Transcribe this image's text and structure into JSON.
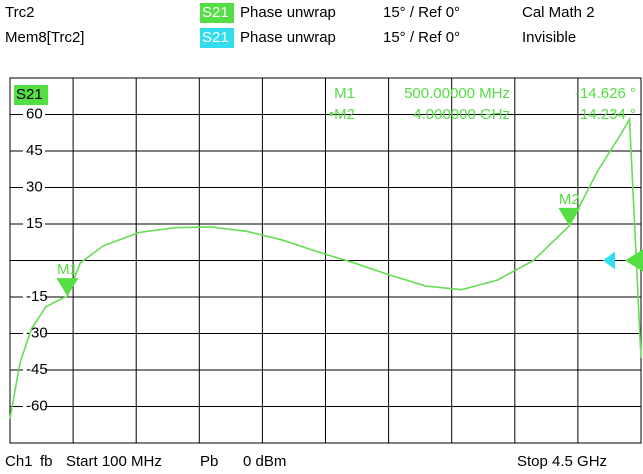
{
  "chart_data": {
    "type": "line",
    "header": [
      {
        "trace": "Trc2",
        "param": "S21",
        "format": "Phase unwrap",
        "scale": "15° / Ref 0°",
        "extra": "Cal Math  2"
      },
      {
        "trace": "Mem8[Trc2]",
        "param": "S21",
        "format": "Phase unwrap",
        "scale": "15° / Ref 0°",
        "extra": "Invisible"
      }
    ],
    "trace_label": "S21",
    "footer": [
      "Ch1",
      "fb",
      "Start 100 MHz",
      "Pb",
      "0 dBm",
      "Stop 4.5 GHz"
    ],
    "x": [
      0.1,
      0.17,
      0.25,
      0.35,
      0.45,
      0.5,
      0.59,
      0.75,
      1.0,
      1.25,
      1.5,
      1.75,
      2.0,
      2.25,
      2.5,
      2.75,
      3.0,
      3.25,
      3.5,
      3.75,
      4.0,
      4.2,
      4.35,
      4.42,
      4.5
    ],
    "series": [
      {
        "name": "S21",
        "color": "#66dd55",
        "values": [
          -65,
          -42,
          -28,
          -19,
          -16,
          -14.626,
          -1,
          6,
          11.5,
          13.5,
          13.8,
          12,
          8.4,
          3.5,
          -1,
          -6,
          -10.5,
          -12,
          -8,
          0,
          14.234,
          37,
          51,
          58,
          -40
        ]
      }
    ],
    "markers": [
      {
        "label": "M1",
        "x": 0.5,
        "value": -14.626,
        "x_label": "500.00000 MHz",
        "value_label": "-14.626 °"
      },
      {
        "label": "M2",
        "x": 4.0,
        "value": 14.234,
        "x_label": "4.000000 GHz",
        "value_label": "14.234 °",
        "readout_label": "•M2"
      }
    ],
    "xlim": [
      0.1,
      4.5
    ],
    "ylim": [
      -75,
      75
    ],
    "yticks": [
      60,
      45,
      30,
      15,
      -15,
      -30,
      -45,
      -60
    ],
    "grid": true
  }
}
